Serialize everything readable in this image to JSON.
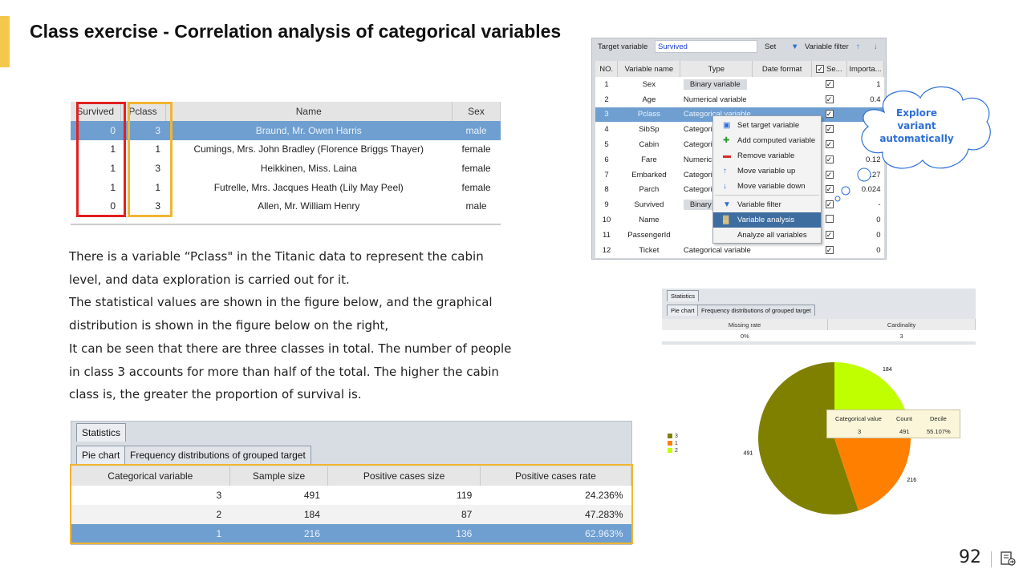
{
  "slide": {
    "title": "Class exercise - Correlation analysis of categorical variables",
    "page_number": "92",
    "accent_color": "#f2c94c"
  },
  "titanic_table": {
    "columns": [
      "Survived",
      "Pclass",
      "Name",
      "Sex"
    ],
    "rows": [
      [
        "0",
        "3",
        "Braund, Mr. Owen Harris",
        "male"
      ],
      [
        "1",
        "1",
        "Cumings, Mrs. John Bradley (Florence Briggs Thayer)",
        "female"
      ],
      [
        "1",
        "3",
        "Heikkinen, Miss. Laina",
        "female"
      ],
      [
        "1",
        "1",
        "Futrelle, Mrs. Jacques Heath (Lily May Peel)",
        "female"
      ],
      [
        "0",
        "3",
        "Allen, Mr. William Henry",
        "male"
      ]
    ],
    "highlight_colors": {
      "survived": "#e02020",
      "pclass": "#f2b531"
    }
  },
  "paragraph": [
    "There is a variable “Pclass\" in the Titanic data to represent the cabin",
    "level, and data exploration is carried out for it.",
    "The statistical values are shown in the figure below, and the graphical",
    "distribution is shown in the figure below on the right,",
    "It can be seen that there are three classes in total. The number of people",
    "in class 3 accounts for more than half of the total. The higher the cabin",
    "class is, the greater the proportion of survival is."
  ],
  "stats_panel": {
    "title_tab": "Statistics",
    "tabs": [
      "Pie chart",
      "Frequency distributions of grouped target"
    ],
    "columns": [
      "Categorical variable",
      "Sample size",
      "Positive cases size",
      "Positive cases rate"
    ],
    "rows": [
      [
        "3",
        "491",
        "119",
        "24.236%"
      ],
      [
        "2",
        "184",
        "87",
        "47.283%"
      ],
      [
        "1",
        "216",
        "136",
        "62.963%"
      ]
    ]
  },
  "variable_panel": {
    "target_label": "Target variable",
    "target_value": "Survived",
    "set_label": "Set",
    "filter_label": "Variable filter",
    "columns": [
      "NO.",
      "Variable name",
      "Type",
      "Date format",
      "Se...",
      "Importa..."
    ],
    "rows": [
      [
        "1",
        "Sex",
        "Binary variable",
        "",
        "checked",
        "1"
      ],
      [
        "2",
        "Age",
        "Numerical variable",
        "",
        "checked",
        "0.4"
      ],
      [
        "3",
        "Pclass",
        "Categorical variable",
        "",
        "checked",
        "0"
      ],
      [
        "4",
        "SibSp",
        "Categoric",
        "",
        "checked",
        ""
      ],
      [
        "5",
        "Cabin",
        "Categoric",
        "",
        "checked",
        ""
      ],
      [
        "6",
        "Fare",
        "Numeric",
        "",
        "checked",
        "0.12"
      ],
      [
        "7",
        "Embarked",
        "Categoric",
        "",
        "checked",
        ".27"
      ],
      [
        "8",
        "Parch",
        "Categoric",
        "",
        "checked",
        "0.024"
      ],
      [
        "9",
        "Survived",
        "Binary",
        "",
        "checked",
        "-"
      ],
      [
        "10",
        "Name",
        "",
        "",
        "unchecked",
        "0"
      ],
      [
        "11",
        "PassengerId",
        "",
        "",
        "checked",
        "0"
      ],
      [
        "12",
        "Ticket",
        "Categorical variable",
        "",
        "checked",
        "0"
      ]
    ],
    "context_menu": [
      {
        "label": "Set target variable",
        "icon": "target-icon"
      },
      {
        "label": "Add computed variable",
        "icon": "add-icon"
      },
      {
        "label": "Remove variable",
        "icon": "remove-icon"
      },
      {
        "label": "Move variable up",
        "icon": "arrow-up-icon"
      },
      {
        "label": "Move variable down",
        "icon": "arrow-down-icon"
      },
      {
        "label": "Variable filter",
        "icon": "filter-icon"
      },
      {
        "label": "Variable analysis",
        "icon": "chart-icon"
      },
      {
        "label": "Analyze all variables",
        "icon": ""
      }
    ]
  },
  "cloud_callout": {
    "lines": [
      "Explore",
      "variant",
      "automatically"
    ],
    "color": "#2c6fd6"
  },
  "right_stats": {
    "title_tab": "Statistics",
    "tabs": [
      "Pie chart",
      "Frequency distributions of grouped target"
    ],
    "columns": [
      "Missing rate",
      "Cardinality"
    ],
    "values": [
      "0%",
      "3"
    ]
  },
  "chart_data": {
    "type": "pie",
    "categories": [
      "3",
      "1",
      "2"
    ],
    "values": [
      491,
      216,
      184
    ],
    "colors": [
      "#808000",
      "#ff8000",
      "#bfff00"
    ],
    "slice_labels": [
      "491",
      "216",
      "184"
    ],
    "legend_position": "left",
    "tooltip": {
      "headers": [
        "Categorical value",
        "Count",
        "Decile"
      ],
      "values": [
        "3",
        "491",
        "55.107%"
      ]
    }
  }
}
